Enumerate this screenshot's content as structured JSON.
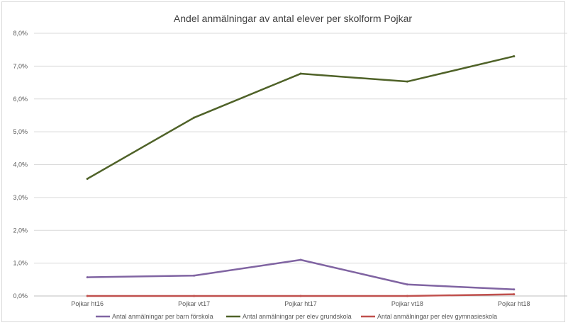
{
  "chart_data": {
    "type": "line",
    "title": "Andel  anmälningar av antal elever per skolform Pojkar",
    "xlabel": "",
    "ylabel": "",
    "categories": [
      "Pojkar ht16",
      "Pojkar vt17",
      "Pojkar ht17",
      "Pojkar vt18",
      "Pojkar ht18"
    ],
    "ylim": [
      0,
      8
    ],
    "yticks": [
      "0,0%",
      "1,0%",
      "2,0%",
      "3,0%",
      "4,0%",
      "5,0%",
      "6,0%",
      "7,0%",
      "8,0%"
    ],
    "grid": true,
    "legend_position": "bottom",
    "series": [
      {
        "name": "Antal anmälningar per barn förskola",
        "color": "#8064a2",
        "values": [
          0.57,
          0.62,
          1.1,
          0.35,
          0.2
        ]
      },
      {
        "name": "Antal anmälningar per elev grundskola",
        "color": "#4f6228",
        "values": [
          3.57,
          5.43,
          6.77,
          6.53,
          7.3
        ]
      },
      {
        "name": "Antal anmälningar per elev gymnasieskola",
        "color": "#c0504d",
        "values": [
          0.0,
          0.0,
          0.0,
          0.0,
          0.05
        ]
      }
    ]
  }
}
